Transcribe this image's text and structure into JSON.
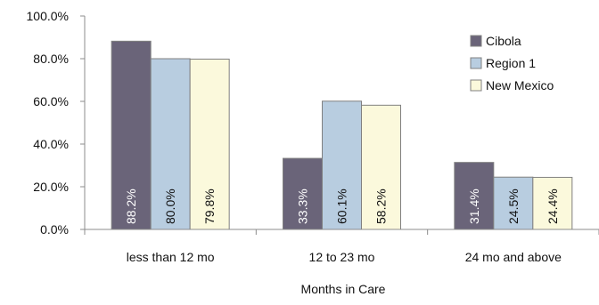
{
  "chart_data": {
    "type": "bar",
    "title": "",
    "xlabel": "Months in Care",
    "ylabel": "",
    "categories": [
      "less than 12 mo",
      "12 to 23 mo",
      "24 mo and above"
    ],
    "ylim": [
      0,
      100
    ],
    "yticks": [
      0,
      20,
      40,
      60,
      80,
      100
    ],
    "ytick_labels": [
      "0.0%",
      "20.0%",
      "40.0%",
      "60.0%",
      "80.0%",
      "100.0%"
    ],
    "grid": false,
    "legend_position": "top-right",
    "series": [
      {
        "name": "Cibola",
        "values": [
          88.2,
          33.3,
          31.4
        ],
        "labels": [
          "88.2%",
          "33.3%",
          "31.4%"
        ],
        "color": "#6a6479",
        "label_color": "#ffffff"
      },
      {
        "name": "Region 1",
        "values": [
          80.0,
          60.1,
          24.5
        ],
        "labels": [
          "80.0%",
          "60.1%",
          "24.5%"
        ],
        "color": "#b8cde0",
        "label_color": "#111111"
      },
      {
        "name": "New Mexico",
        "values": [
          79.8,
          58.2,
          24.4
        ],
        "labels": [
          "79.8%",
          "58.2%",
          "24.4%"
        ],
        "color": "#fbf9dc",
        "label_color": "#111111"
      }
    ]
  }
}
